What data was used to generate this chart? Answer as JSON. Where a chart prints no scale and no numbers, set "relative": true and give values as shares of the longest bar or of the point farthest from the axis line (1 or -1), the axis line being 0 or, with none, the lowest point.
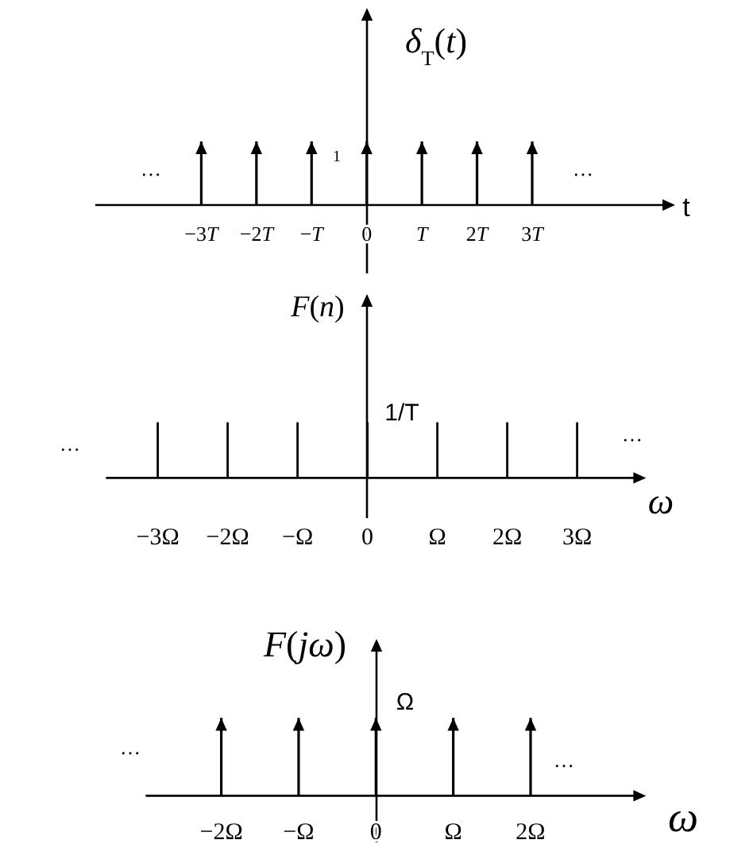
{
  "chart_data": [
    {
      "type": "bar",
      "ylabel": "δ$_{T}$(t)",
      "xlabel": "t",
      "categories": [
        "−3T",
        "−2T",
        "−T",
        "0",
        "T",
        "2T",
        "3T"
      ],
      "values": [
        1,
        1,
        1,
        1,
        1,
        1,
        1
      ],
      "relative": true,
      "color": "#000000",
      "marker": "triangle",
      "tick_labels": "x",
      "annotations": [
        "1",
        "…",
        "…"
      ]
    },
    {
      "type": "bar",
      "ylabel": "F(n)",
      "xlabel": "ω",
      "categories": [
        "−3Ω",
        "−2Ω",
        "−Ω",
        "0",
        "Ω",
        "2Ω",
        "3Ω"
      ],
      "values": [
        1,
        1,
        1,
        1,
        1,
        1,
        1
      ],
      "relative": true,
      "color": "#000000",
      "marker": "none",
      "tick_labels": "x",
      "annotations": [
        "1/T",
        "…",
        "…"
      ]
    },
    {
      "type": "bar",
      "ylabel": "F(jω)",
      "xlabel": "ω",
      "categories": [
        "−2Ω",
        "−Ω",
        "0",
        "Ω",
        "2Ω"
      ],
      "values": [
        1,
        1,
        1,
        1,
        1
      ],
      "relative": true,
      "color": "#000000",
      "marker": "triangle",
      "tick_labels": "x",
      "annotations": [
        "Ω",
        "…",
        "…"
      ]
    }
  ]
}
